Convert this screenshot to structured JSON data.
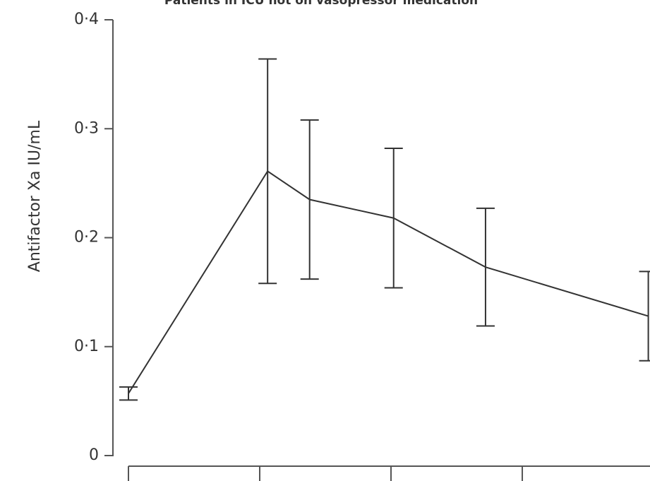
{
  "chart_data": {
    "type": "line",
    "title": "Patients in ICU not on vasopressor medication",
    "y_label": "Antifactor Xa IU/mL",
    "x": [
      0,
      1.06,
      1.38,
      2.02,
      2.72,
      3.96
    ],
    "series": [
      {
        "color": "#333333",
        "values": [
          0.057,
          0.261,
          0.235,
          0.218,
          0.173,
          0.128
        ],
        "errors": [
          0.006,
          0.103,
          0.073,
          0.064,
          0.054,
          0.041
        ]
      }
    ],
    "xlim": [
      0,
      3.96
    ],
    "xticks": [
      0,
      1,
      2,
      3
    ],
    "ylim": [
      0,
      0.4
    ],
    "yticks": [
      0,
      {
        "value": 0.1,
        "label": "0·1"
      },
      {
        "value": 0.2,
        "label": "0·2"
      },
      {
        "value": 0.3,
        "label": "0·3"
      },
      {
        "value": 0.4,
        "label": "0·4"
      }
    ]
  }
}
